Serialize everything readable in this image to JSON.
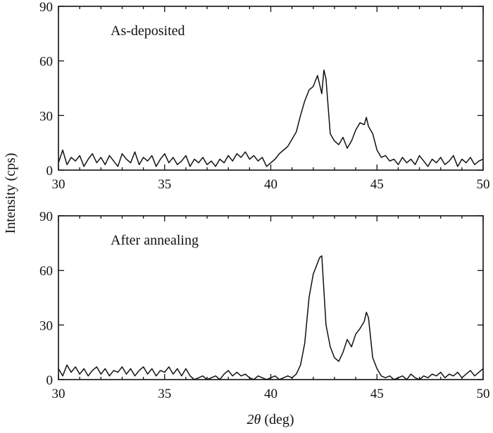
{
  "chart_data": [
    {
      "type": "line",
      "annotation": "As-deposited",
      "xlabel_symbol": "2θ",
      "xlabel_unit": " (deg)",
      "xlim": [
        30,
        50
      ],
      "ylim": [
        0,
        90
      ],
      "xticks": [
        "30",
        "35",
        "40",
        "45",
        "50"
      ],
      "yticks": [
        "0",
        "30",
        "60",
        "90"
      ],
      "grid": false,
      "series": [
        {
          "x": [
            30.0,
            30.2,
            30.4,
            30.6,
            30.8,
            31.0,
            31.2,
            31.4,
            31.6,
            31.8,
            32.0,
            32.2,
            32.4,
            32.6,
            32.8,
            33.0,
            33.2,
            33.4,
            33.6,
            33.8,
            34.0,
            34.2,
            34.4,
            34.6,
            34.8,
            35.0,
            35.2,
            35.4,
            35.6,
            35.8,
            36.0,
            36.2,
            36.4,
            36.6,
            36.8,
            37.0,
            37.2,
            37.4,
            37.6,
            37.8,
            38.0,
            38.2,
            38.4,
            38.6,
            38.8,
            39.0,
            39.2,
            39.4,
            39.6,
            39.8,
            40.0,
            40.2,
            40.4,
            40.6,
            40.8,
            41.0,
            41.2,
            41.4,
            41.6,
            41.8,
            42.0,
            42.2,
            42.4,
            42.5,
            42.6,
            42.8,
            43.0,
            43.2,
            43.4,
            43.6,
            43.8,
            44.0,
            44.2,
            44.4,
            44.5,
            44.6,
            44.8,
            45.0,
            45.2,
            45.4,
            45.6,
            45.8,
            46.0,
            46.2,
            46.4,
            46.6,
            46.8,
            47.0,
            47.2,
            47.4,
            47.6,
            47.8,
            48.0,
            48.2,
            48.4,
            48.6,
            48.8,
            49.0,
            49.2,
            49.4,
            49.6,
            49.8,
            50.0
          ],
          "y": [
            4,
            11,
            3,
            7,
            5,
            8,
            2,
            6,
            9,
            4,
            7,
            3,
            8,
            5,
            2,
            9,
            6,
            4,
            10,
            3,
            7,
            5,
            8,
            2,
            6,
            9,
            4,
            7,
            3,
            5,
            8,
            2,
            6,
            4,
            7,
            3,
            5,
            2,
            6,
            4,
            8,
            5,
            9,
            7,
            10,
            6,
            8,
            5,
            7,
            2,
            4,
            6,
            9,
            11,
            13,
            17,
            21,
            30,
            38,
            44,
            46,
            52,
            42,
            55,
            50,
            20,
            16,
            14,
            18,
            12,
            16,
            22,
            26,
            25,
            29,
            24,
            20,
            11,
            7,
            8,
            5,
            6,
            3,
            7,
            4,
            6,
            3,
            8,
            5,
            2,
            6,
            4,
            7,
            3,
            5,
            8,
            2,
            6,
            4,
            7,
            3,
            5,
            6
          ],
          "color": "#111111"
        }
      ]
    },
    {
      "type": "line",
      "annotation": "After annealing",
      "xlabel_symbol": "2θ",
      "xlabel_unit": " (deg)",
      "xlim": [
        30,
        50
      ],
      "ylim": [
        0,
        90
      ],
      "xticks": [
        "30",
        "35",
        "40",
        "45",
        "50"
      ],
      "yticks": [
        "0",
        "30",
        "60",
        "90"
      ],
      "grid": false,
      "series": [
        {
          "x": [
            30.0,
            30.2,
            30.4,
            30.6,
            30.8,
            31.0,
            31.2,
            31.4,
            31.6,
            31.8,
            32.0,
            32.2,
            32.4,
            32.6,
            32.8,
            33.0,
            33.2,
            33.4,
            33.6,
            33.8,
            34.0,
            34.2,
            34.4,
            34.6,
            34.8,
            35.0,
            35.2,
            35.4,
            35.6,
            35.8,
            36.0,
            36.2,
            36.4,
            36.6,
            36.8,
            37.0,
            37.2,
            37.4,
            37.6,
            37.8,
            38.0,
            38.2,
            38.4,
            38.6,
            38.8,
            39.0,
            39.2,
            39.4,
            39.6,
            39.8,
            40.0,
            40.2,
            40.4,
            40.6,
            40.8,
            41.0,
            41.2,
            41.4,
            41.6,
            41.8,
            42.0,
            42.2,
            42.3,
            42.4,
            42.6,
            42.8,
            43.0,
            43.2,
            43.4,
            43.6,
            43.8,
            44.0,
            44.2,
            44.4,
            44.5,
            44.6,
            44.8,
            45.0,
            45.2,
            45.4,
            45.6,
            45.8,
            46.0,
            46.2,
            46.4,
            46.6,
            46.8,
            47.0,
            47.2,
            47.4,
            47.6,
            47.8,
            48.0,
            48.2,
            48.4,
            48.6,
            48.8,
            49.0,
            49.2,
            49.4,
            49.6,
            49.8,
            50.0
          ],
          "y": [
            6,
            2,
            8,
            4,
            7,
            3,
            6,
            2,
            5,
            7,
            3,
            6,
            2,
            5,
            4,
            7,
            3,
            6,
            2,
            5,
            7,
            3,
            6,
            2,
            5,
            4,
            7,
            3,
            6,
            2,
            6,
            2,
            0,
            1,
            2,
            0,
            1,
            2,
            0,
            3,
            5,
            2,
            4,
            2,
            3,
            1,
            0,
            2,
            1,
            0,
            1,
            2,
            0,
            1,
            2,
            1,
            3,
            8,
            20,
            45,
            58,
            64,
            67,
            68,
            30,
            18,
            12,
            10,
            15,
            22,
            18,
            25,
            28,
            32,
            37,
            34,
            12,
            6,
            2,
            1,
            2,
            0,
            1,
            2,
            0,
            3,
            1,
            0,
            2,
            1,
            3,
            2,
            4,
            1,
            3,
            2,
            4,
            1,
            3,
            5,
            2,
            4,
            6
          ],
          "color": "#111111"
        }
      ]
    }
  ],
  "shared_ylabel": "Intensity (cps)"
}
